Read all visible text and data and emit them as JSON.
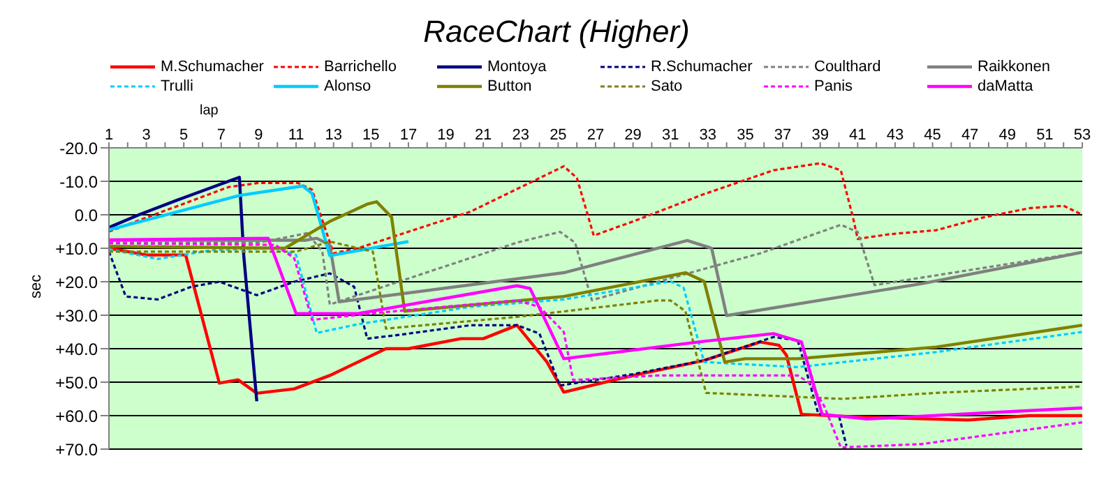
{
  "chart_data": {
    "type": "line",
    "title": "RaceChart (Higher)",
    "xlabel": "lap",
    "ylabel": "sec",
    "xlim": [
      1,
      53
    ],
    "xticks": [
      1,
      {
        "value": 2,
        "label": null
      },
      3,
      {
        "value": 4,
        "label": null
      },
      5,
      {
        "value": 6,
        "label": null
      },
      7,
      {
        "value": 8,
        "label": null
      },
      9,
      {
        "value": 10,
        "label": null
      },
      11,
      {
        "value": 12,
        "label": null
      },
      13,
      {
        "value": 14,
        "label": null
      },
      15,
      {
        "value": 16,
        "label": null
      },
      17,
      {
        "value": 18,
        "label": null
      },
      19,
      {
        "value": 20,
        "label": null
      },
      21,
      {
        "value": 22,
        "label": null
      },
      23,
      {
        "value": 24,
        "label": null
      },
      25,
      {
        "value": 26,
        "label": null
      },
      27,
      {
        "value": 28,
        "label": null
      },
      29,
      {
        "value": 30,
        "label": null
      },
      31,
      {
        "value": 32,
        "label": null
      },
      33,
      {
        "value": 34,
        "label": null
      },
      35,
      {
        "value": 36,
        "label": null
      },
      37,
      {
        "value": 38,
        "label": null
      },
      39,
      {
        "value": 40,
        "label": null
      },
      41,
      {
        "value": 42,
        "label": null
      },
      43,
      {
        "value": 44,
        "label": null
      },
      45,
      {
        "value": 46,
        "label": null
      },
      47,
      {
        "value": 48,
        "label": null
      },
      49,
      {
        "value": 50,
        "label": null
      },
      51,
      {
        "value": 52,
        "label": null
      },
      53
    ],
    "ylim": [
      70,
      -20
    ],
    "yticks": [
      {
        "value": -20,
        "label": "-20.0"
      },
      {
        "value": -10,
        "label": "-10.0"
      },
      {
        "value": 0,
        "label": "0.0"
      },
      {
        "value": 10,
        "label": "+10.0"
      },
      {
        "value": 20,
        "label": "+20.0"
      },
      {
        "value": 30,
        "label": "+30.0"
      },
      {
        "value": 40,
        "label": "+40.0"
      },
      {
        "value": 50,
        "label": "+50.0"
      },
      {
        "value": 60,
        "label": "+60.0"
      },
      {
        "value": 70,
        "label": "+70.0"
      }
    ],
    "grid": "y",
    "legend": "top",
    "marker": "none",
    "series": [
      {
        "name": "M.Schumacher",
        "color": "#ff0000",
        "line_style": "solid",
        "x": [
          1,
          3,
          5.1,
          6.9,
          7.9,
          8.9,
          10.9,
          12.8,
          15.8,
          17,
          19.8,
          21,
          22.8,
          24.4,
          25.3,
          29,
          30.3,
          32.8,
          35.8,
          36.8,
          37.2,
          38,
          41.5,
          46.9,
          50.2,
          53
        ],
        "values": [
          10,
          12,
          12,
          50.3,
          49.3,
          53.3,
          52,
          48,
          40,
          40,
          37,
          37,
          33,
          44,
          53,
          48,
          46.5,
          43.5,
          38,
          39,
          42,
          59.6,
          60.5,
          61.3,
          60,
          60
        ]
      },
      {
        "name": "Barrichello",
        "color": "#ff0000",
        "line_style": "dashed",
        "x": [
          1,
          7.4,
          9,
          11.1,
          11.85,
          13,
          14.3,
          17.8,
          20.3,
          22.8,
          25.3,
          26,
          26.9,
          29,
          32.8,
          36.5,
          39,
          40.1,
          40.75,
          41,
          42.7,
          45.2,
          47.7,
          50.2,
          52,
          53
        ],
        "values": [
          5,
          -8.3,
          -9.5,
          -9.5,
          -7.5,
          11.5,
          10,
          3.6,
          -0.9,
          -7.7,
          -14.5,
          -11,
          6.2,
          2,
          -6.2,
          -13.3,
          -15.4,
          -13.3,
          0.8,
          7.2,
          5.8,
          4.6,
          0.8,
          -2,
          -2.7,
          0
        ]
      },
      {
        "name": "Montoya",
        "color": "#000080",
        "line_style": "solid",
        "x": [
          1,
          2.6,
          4.9,
          7.97,
          8.2,
          8.9
        ],
        "values": [
          3.8,
          0,
          -4.9,
          -11.2,
          12,
          55.7
        ]
      },
      {
        "name": "R.Schumacher",
        "color": "#000080",
        "line_style": "dashed",
        "x": [
          1,
          1.9,
          3.6,
          5.4,
          6.9,
          8.9,
          10.9,
          12.8,
          14.1,
          14.8,
          16.6,
          20.3,
          22.8,
          24,
          25.1,
          29,
          32.8,
          36.5,
          37.8,
          38.9,
          40,
          40.4
        ],
        "values": [
          11,
          24.4,
          25.3,
          21.5,
          20,
          24,
          20,
          17.5,
          21.5,
          37,
          35.8,
          33,
          33,
          35.5,
          51,
          47.6,
          43.5,
          36.5,
          37.5,
          59.5,
          60,
          69
        ]
      },
      {
        "name": "Coulthard",
        "color": "#808080",
        "line_style": "dashed",
        "x": [
          1,
          9,
          11.6,
          12.4,
          12.8,
          22.8,
          25.1,
          25.9,
          26.8,
          35.8,
          40.1,
          41,
          41.9,
          53
        ],
        "values": [
          8.3,
          8.3,
          5.5,
          11,
          26.8,
          8.3,
          5.1,
          8.3,
          25.5,
          11.5,
          3,
          5.1,
          21,
          11.2
        ]
      },
      {
        "name": "Raikkonen",
        "color": "#808080",
        "line_style": "solid",
        "x": [
          1,
          11.5,
          12.1,
          12.8,
          13.3,
          25.3,
          31.9,
          33.2,
          34,
          44.5,
          53
        ],
        "values": [
          7.6,
          7.6,
          7,
          9,
          26,
          17.3,
          7.7,
          10,
          30.1,
          20.5,
          11.2
        ]
      },
      {
        "name": "Trulli",
        "color": "#00ccff",
        "line_style": "dashed",
        "x": [
          1,
          3.6,
          6.6,
          9.9,
          11,
          12.1,
          14.3,
          20.3,
          25.3,
          31,
          31.7,
          32.8,
          37.8,
          45.2,
          53
        ],
        "values": [
          10.3,
          13.2,
          10.5,
          10,
          12,
          35.3,
          32.7,
          27.5,
          25.3,
          19.9,
          21.8,
          44,
          45.5,
          41,
          35
        ]
      },
      {
        "name": "Alonso",
        "color": "#00ccff",
        "line_style": "solid",
        "x": [
          1,
          8,
          11.35,
          11.85,
          12.8,
          17
        ],
        "values": [
          4.5,
          -5.8,
          -8.6,
          -6.4,
          12.2,
          8
        ]
      },
      {
        "name": "Button",
        "color": "#808000",
        "line_style": "solid",
        "x": [
          1,
          10.4,
          12.8,
          14.8,
          15.3,
          16.1,
          16.8,
          25.3,
          31.8,
          32.8,
          33.9,
          35,
          37.8,
          45.2,
          53
        ],
        "values": [
          9.4,
          10,
          2,
          -3.2,
          -3.9,
          0.7,
          28.8,
          24.4,
          17.3,
          19.9,
          44,
          43,
          43,
          39.5,
          33
        ]
      },
      {
        "name": "Sato",
        "color": "#808000",
        "line_style": "dashed",
        "x": [
          1,
          11,
          12.8,
          15.1,
          15.8,
          17.8,
          22.8,
          30.3,
          31,
          31.8,
          32.9,
          40.2,
          45.2,
          53
        ],
        "values": [
          11,
          11,
          8,
          11,
          34,
          33,
          30.5,
          25.6,
          25.6,
          28.8,
          53.2,
          55,
          53.2,
          51.3
        ]
      },
      {
        "name": "Panis",
        "color": "#ff00ff",
        "line_style": "dashed",
        "x": [
          1,
          9.9,
          10.9,
          11.85,
          15.3,
          20.3,
          22.8,
          24,
          25.3,
          25.8,
          30.3,
          37.8,
          38.5,
          39.2,
          40.1,
          44.4,
          53
        ],
        "values": [
          8.5,
          9,
          13,
          31.4,
          29.3,
          26.8,
          25.6,
          27.5,
          35,
          49.4,
          48,
          48,
          50.5,
          57,
          69.5,
          68.5,
          62
        ]
      },
      {
        "name": "daMatta",
        "color": "#ff00ff",
        "line_style": "solid",
        "x": [
          1,
          9.5,
          11,
          14.3,
          22.8,
          23.5,
          25.3,
          32.8,
          36.5,
          38,
          39.1,
          41.5,
          50.2,
          53
        ],
        "values": [
          7.5,
          7,
          29.5,
          29.5,
          21.2,
          22,
          43,
          37.8,
          35.5,
          38,
          59.6,
          61,
          58.5,
          57.7
        ]
      }
    ]
  }
}
